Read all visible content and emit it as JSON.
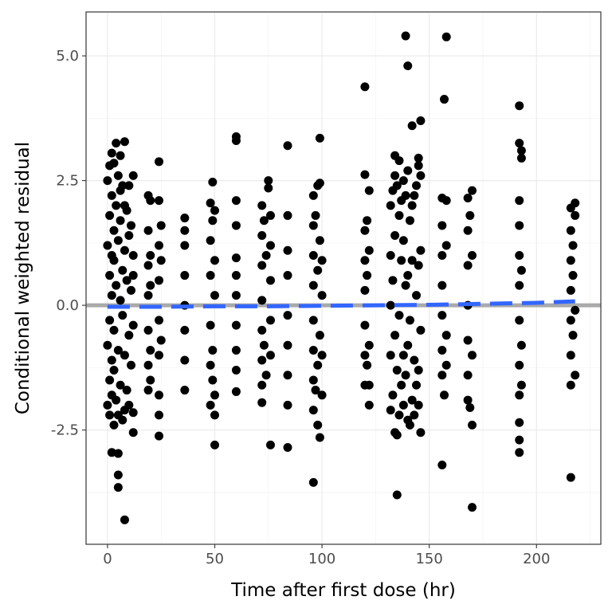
{
  "chart_data": {
    "type": "scatter",
    "title": "",
    "xlabel": "Time after first dose (hr)",
    "ylabel": "Conditional weighted residual",
    "xlim": [
      -10,
      230
    ],
    "ylim": [
      -4.79,
      5.88
    ],
    "xticks": [
      0,
      50,
      100,
      150,
      200
    ],
    "xtick_labels": [
      "0",
      "50",
      "100",
      "150",
      "200"
    ],
    "yticks": [
      -2.5,
      0,
      2.5,
      5
    ],
    "ytick_labels": [
      "-2.5",
      "0.0",
      "2.5",
      "5.0"
    ],
    "grid": true,
    "reference_line": {
      "y": 0,
      "color": "#aaaaaa"
    },
    "smooth": {
      "color": "#3366ff",
      "x": [
        0,
        25,
        50,
        75,
        100,
        125,
        150,
        175,
        200,
        218
      ],
      "y": [
        -0.03,
        -0.03,
        -0.02,
        -0.02,
        -0.01,
        0,
        0.01,
        0.03,
        0.05,
        0.08
      ]
    },
    "point_color": "#000000",
    "points": [
      [
        0,
        2.5
      ],
      [
        0,
        -2
      ],
      [
        0,
        1.2
      ],
      [
        0,
        -0.8
      ],
      [
        1,
        2.8
      ],
      [
        1,
        -1.5
      ],
      [
        1,
        0.6
      ],
      [
        1,
        -0.3
      ],
      [
        1,
        1.8
      ],
      [
        1,
        -2.2
      ],
      [
        2,
        3.05
      ],
      [
        2,
        -2.95
      ],
      [
        2,
        2.2
      ],
      [
        2,
        -1.1
      ],
      [
        2,
        0.2
      ],
      [
        2,
        1.0
      ],
      [
        2,
        -1.8
      ],
      [
        3,
        2.85
      ],
      [
        3,
        -2.4
      ],
      [
        3,
        1.5
      ],
      [
        3,
        -0.5
      ],
      [
        3,
        0.9
      ],
      [
        3,
        -1.3
      ],
      [
        4,
        2.0
      ],
      [
        4,
        -1.9
      ],
      [
        4,
        0.4
      ],
      [
        4,
        3.25
      ],
      [
        5,
        -2.97
      ],
      [
        5,
        -3.4
      ],
      [
        5,
        -3.65
      ],
      [
        5,
        2.6
      ],
      [
        5,
        -0.9
      ],
      [
        5,
        1.3
      ],
      [
        5,
        -2.2
      ],
      [
        6,
        2.3
      ],
      [
        6,
        -1.6
      ],
      [
        6,
        0.1
      ],
      [
        6,
        1.7
      ],
      [
        6,
        3.0
      ],
      [
        7,
        -2.3
      ],
      [
        7,
        0.7
      ],
      [
        7,
        -0.2
      ],
      [
        7,
        2.4
      ],
      [
        8,
        3.28
      ],
      [
        8,
        -4.3
      ],
      [
        8,
        -2.1
      ],
      [
        8,
        1.1
      ],
      [
        8,
        -1.0
      ],
      [
        8,
        2.0
      ],
      [
        9,
        -1.7
      ],
      [
        9,
        0.5
      ],
      [
        9,
        1.9
      ],
      [
        10,
        2.4
      ],
      [
        10,
        -2.0
      ],
      [
        10,
        -0.6
      ],
      [
        10,
        1.4
      ],
      [
        11,
        0.3
      ],
      [
        11,
        -1.2
      ],
      [
        11,
        1.6
      ],
      [
        12,
        2.6
      ],
      [
        12,
        -2.55
      ],
      [
        12,
        -2.15
      ],
      [
        12,
        1.0
      ],
      [
        12,
        -0.4
      ],
      [
        12,
        0.6
      ],
      [
        19,
        2.2
      ],
      [
        19,
        1.5
      ],
      [
        19,
        0.8
      ],
      [
        19,
        0.2
      ],
      [
        19,
        -0.5
      ],
      [
        19,
        -1.2
      ],
      [
        19,
        -1.7
      ],
      [
        20,
        1.0
      ],
      [
        20,
        -0.9
      ],
      [
        20,
        0.4
      ],
      [
        20,
        -1.5
      ],
      [
        20,
        2.1
      ],
      [
        24,
        2.88
      ],
      [
        24,
        2.1
      ],
      [
        24,
        1.2
      ],
      [
        24,
        0.5
      ],
      [
        24,
        -0.3
      ],
      [
        24,
        -1.0
      ],
      [
        24,
        -1.8
      ],
      [
        24,
        -2.2
      ],
      [
        24,
        -2.62
      ],
      [
        25,
        1.6
      ],
      [
        25,
        -0.7
      ],
      [
        25,
        0.9
      ],
      [
        36,
        1.75
      ],
      [
        36,
        1.2
      ],
      [
        36,
        0.6
      ],
      [
        36,
        0.0
      ],
      [
        36,
        -0.5
      ],
      [
        36,
        -1.1
      ],
      [
        36,
        -1.7
      ],
      [
        36,
        1.5
      ],
      [
        48,
        2.05
      ],
      [
        48,
        1.3
      ],
      [
        48,
        0.6
      ],
      [
        48,
        -0.4
      ],
      [
        48,
        -1.2
      ],
      [
        48,
        -2.0
      ],
      [
        49,
        2.47
      ],
      [
        49,
        1.7
      ],
      [
        49,
        -0.9
      ],
      [
        49,
        -1.5
      ],
      [
        50,
        0.9
      ],
      [
        50,
        -2.2
      ],
      [
        50,
        -2.8
      ],
      [
        50,
        0.2
      ],
      [
        50,
        -1.8
      ],
      [
        50,
        1.9
      ],
      [
        60,
        3.38
      ],
      [
        60,
        3.3
      ],
      [
        60,
        2.1
      ],
      [
        60,
        1.6
      ],
      [
        60,
        0.6
      ],
      [
        60,
        0.2
      ],
      [
        60,
        -0.4
      ],
      [
        60,
        -0.9
      ],
      [
        60,
        -1.3
      ],
      [
        60,
        -1.73
      ],
      [
        60,
        0.95
      ],
      [
        72,
        2.0
      ],
      [
        72,
        1.4
      ],
      [
        72,
        0.8
      ],
      [
        72,
        0.1
      ],
      [
        72,
        -0.5
      ],
      [
        72,
        -1.1
      ],
      [
        72,
        -1.6
      ],
      [
        72,
        -1.95
      ],
      [
        73,
        1.7
      ],
      [
        73,
        -0.8
      ],
      [
        74,
        1.0
      ],
      [
        74,
        -1.4
      ],
      [
        75,
        2.5
      ],
      [
        75,
        2.35
      ],
      [
        76,
        1.8
      ],
      [
        76,
        -2.8
      ],
      [
        76,
        0.5
      ],
      [
        76,
        -1.0
      ],
      [
        76,
        1.2
      ],
      [
        76,
        -0.3
      ],
      [
        84,
        3.2
      ],
      [
        84,
        1.8
      ],
      [
        84,
        1.1
      ],
      [
        84,
        0.6
      ],
      [
        84,
        -0.2
      ],
      [
        84,
        -0.8
      ],
      [
        84,
        -1.4
      ],
      [
        84,
        -2.0
      ],
      [
        84,
        -2.85
      ],
      [
        96,
        2.2
      ],
      [
        96,
        1.6
      ],
      [
        96,
        1.0
      ],
      [
        96,
        0.4
      ],
      [
        96,
        -0.3
      ],
      [
        96,
        -0.9
      ],
      [
        96,
        -1.5
      ],
      [
        96,
        -2.1
      ],
      [
        96,
        -3.55
      ],
      [
        97,
        1.8
      ],
      [
        97,
        -1.7
      ],
      [
        98,
        2.4
      ],
      [
        98,
        -2.4
      ],
      [
        98,
        0.7
      ],
      [
        98,
        -1.2
      ],
      [
        99,
        3.35
      ],
      [
        99,
        2.45
      ],
      [
        99,
        1.3
      ],
      [
        99,
        -0.6
      ],
      [
        99,
        -2.65
      ],
      [
        100,
        0.9
      ],
      [
        100,
        -1.0
      ],
      [
        100,
        -1.8
      ],
      [
        100,
        0.2
      ],
      [
        120,
        4.38
      ],
      [
        120,
        2.62
      ],
      [
        120,
        1.5
      ],
      [
        120,
        0.9
      ],
      [
        120,
        0.3
      ],
      [
        120,
        -0.4
      ],
      [
        120,
        -1.0
      ],
      [
        120,
        -1.6
      ],
      [
        121,
        1.7
      ],
      [
        121,
        -1.2
      ],
      [
        121,
        0.6
      ],
      [
        122,
        2.3
      ],
      [
        122,
        -2.0
      ],
      [
        122,
        1.1
      ],
      [
        122,
        -0.8
      ],
      [
        122,
        -1.6
      ],
      [
        132,
        2.0
      ],
      [
        132,
        1.0
      ],
      [
        132,
        0.0
      ],
      [
        132,
        -1.0
      ],
      [
        132,
        -2.1
      ],
      [
        133,
        2.3
      ],
      [
        133,
        -1.8
      ],
      [
        133,
        0.5
      ],
      [
        134,
        3.0
      ],
      [
        134,
        2.6
      ],
      [
        134,
        -2.55
      ],
      [
        134,
        -0.6
      ],
      [
        134,
        1.4
      ],
      [
        135,
        -3.8
      ],
      [
        135,
        -2.6
      ],
      [
        135,
        2.4
      ],
      [
        135,
        -1.3
      ],
      [
        136,
        2.9
      ],
      [
        136,
        1.8
      ],
      [
        136,
        -0.2
      ],
      [
        136,
        -2.2
      ],
      [
        137,
        2.1
      ],
      [
        137,
        -1.6
      ],
      [
        137,
        0.9
      ],
      [
        138,
        2.5
      ],
      [
        138,
        -1.0
      ],
      [
        138,
        1.3
      ],
      [
        138,
        -2.0
      ],
      [
        139,
        5.4
      ],
      [
        139,
        2.2
      ],
      [
        139,
        -1.4
      ],
      [
        139,
        0.4
      ],
      [
        140,
        4.8
      ],
      [
        140,
        2.7
      ],
      [
        140,
        -2.3
      ],
      [
        140,
        0.6
      ],
      [
        140,
        -0.8
      ],
      [
        141,
        1.7
      ],
      [
        141,
        -2.4
      ],
      [
        141,
        -0.3
      ],
      [
        142,
        3.6
      ],
      [
        142,
        2.0
      ],
      [
        142,
        -1.9
      ],
      [
        142,
        0.9
      ],
      [
        143,
        2.2
      ],
      [
        143,
        -1.1
      ],
      [
        143,
        -2.2
      ],
      [
        144,
        2.4
      ],
      [
        144,
        0.2
      ],
      [
        144,
        -1.6
      ],
      [
        145,
        2.95
      ],
      [
        145,
        2.8
      ],
      [
        145,
        -2.0
      ],
      [
        145,
        0.8
      ],
      [
        145,
        -1.3
      ],
      [
        146,
        3.7
      ],
      [
        146,
        2.6
      ],
      [
        146,
        -2.55
      ],
      [
        146,
        1.1
      ],
      [
        146,
        -0.5
      ],
      [
        156,
        2.15
      ],
      [
        156,
        1.6
      ],
      [
        156,
        1.0
      ],
      [
        156,
        0.4
      ],
      [
        156,
        -0.2
      ],
      [
        156,
        -0.9
      ],
      [
        156,
        -1.4
      ],
      [
        156,
        -3.2
      ],
      [
        157,
        4.13
      ],
      [
        157,
        -1.8
      ],
      [
        158,
        5.38
      ],
      [
        158,
        1.2
      ],
      [
        158,
        -0.6
      ],
      [
        158,
        2.1
      ],
      [
        158,
        -1.2
      ],
      [
        168,
        2.15
      ],
      [
        168,
        1.5
      ],
      [
        168,
        0.8
      ],
      [
        168,
        0.0
      ],
      [
        168,
        -0.7
      ],
      [
        168,
        -1.4
      ],
      [
        168,
        -1.9
      ],
      [
        169,
        1.8
      ],
      [
        169,
        -2.05
      ],
      [
        170,
        2.3
      ],
      [
        170,
        -2.4
      ],
      [
        170,
        -4.05
      ],
      [
        170,
        1.0
      ],
      [
        170,
        -1.0
      ],
      [
        192,
        4.0
      ],
      [
        192,
        3.25
      ],
      [
        192,
        2.1
      ],
      [
        192,
        1.6
      ],
      [
        192,
        1.0
      ],
      [
        192,
        0.4
      ],
      [
        192,
        -0.3
      ],
      [
        192,
        -1.2
      ],
      [
        192,
        -1.8
      ],
      [
        192,
        -2.35
      ],
      [
        192,
        -2.7
      ],
      [
        192,
        -2.95
      ],
      [
        193,
        3.1
      ],
      [
        193,
        2.95
      ],
      [
        193,
        0.7
      ],
      [
        193,
        -0.8
      ],
      [
        193,
        -1.6
      ],
      [
        216,
        1.95
      ],
      [
        216,
        1.5
      ],
      [
        216,
        0.9
      ],
      [
        216,
        0.3
      ],
      [
        216,
        -0.3
      ],
      [
        216,
        -1.0
      ],
      [
        216,
        -1.6
      ],
      [
        216,
        -3.45
      ],
      [
        217,
        1.2
      ],
      [
        217,
        -0.6
      ],
      [
        217,
        0.6
      ],
      [
        218,
        2.05
      ],
      [
        218,
        1.8
      ],
      [
        218,
        -1.4
      ],
      [
        218,
        -0.1
      ]
    ]
  }
}
